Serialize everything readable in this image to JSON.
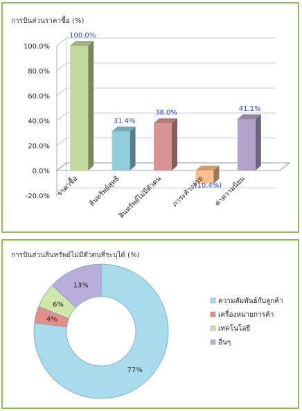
{
  "bar_chart": {
    "title": "การปันส่วนราคาซื้อ (%)",
    "chart_data": {
      "type": "bar",
      "title": "การปันส่วนราคาซื้อ (%)",
      "categories": [
        "ราคาซื้อ",
        "สินทรัพย์สุทธิ",
        "สินทรัพย์ไม่มีตัวตน",
        "ภาระค้างจ่าย",
        "ค่าความนิยม"
      ],
      "values": [
        100.0,
        31.4,
        38.0,
        -10.4,
        41.1
      ],
      "data_labels": [
        "100.0%",
        "31.4%",
        "38.0%",
        "(10.4%)",
        "41.1%"
      ],
      "colors": [
        "#c3d89b",
        "#92cddc",
        "#d99594",
        "#fac090",
        "#b3a2c7"
      ],
      "y_ticks": [
        "-20.0%",
        "0.0%",
        "20.0%",
        "40.0%",
        "60.0%",
        "80.0%",
        "100.0%"
      ],
      "y_tick_values": [
        -20,
        0,
        20,
        40,
        60,
        80,
        100
      ],
      "ylim": [
        -20,
        100
      ],
      "grid": true,
      "style": "3d"
    }
  },
  "donut_chart": {
    "title": "การปันส่วนสินทรัพย์ไม่มีตัวตนที่ระบุได้ (%)",
    "chart_data": {
      "type": "pie",
      "variant": "donut",
      "title": "การปันส่วนสินทรัพย์ไม่มีตัวตนที่ระบุได้ (%)",
      "categories": [
        "ความสัมพันธ์กับลูกค้า",
        "เครื่องหมายการค้า",
        "เทคโนโลยี",
        "อื่นๆ"
      ],
      "values": [
        77,
        4,
        6,
        13
      ],
      "data_labels": [
        "77%",
        "4%",
        "6%",
        "13%"
      ],
      "colors": [
        "#a8dcec",
        "#e48d8b",
        "#d1e6a8",
        "#b9aedb"
      ],
      "legend_position": "right"
    }
  }
}
